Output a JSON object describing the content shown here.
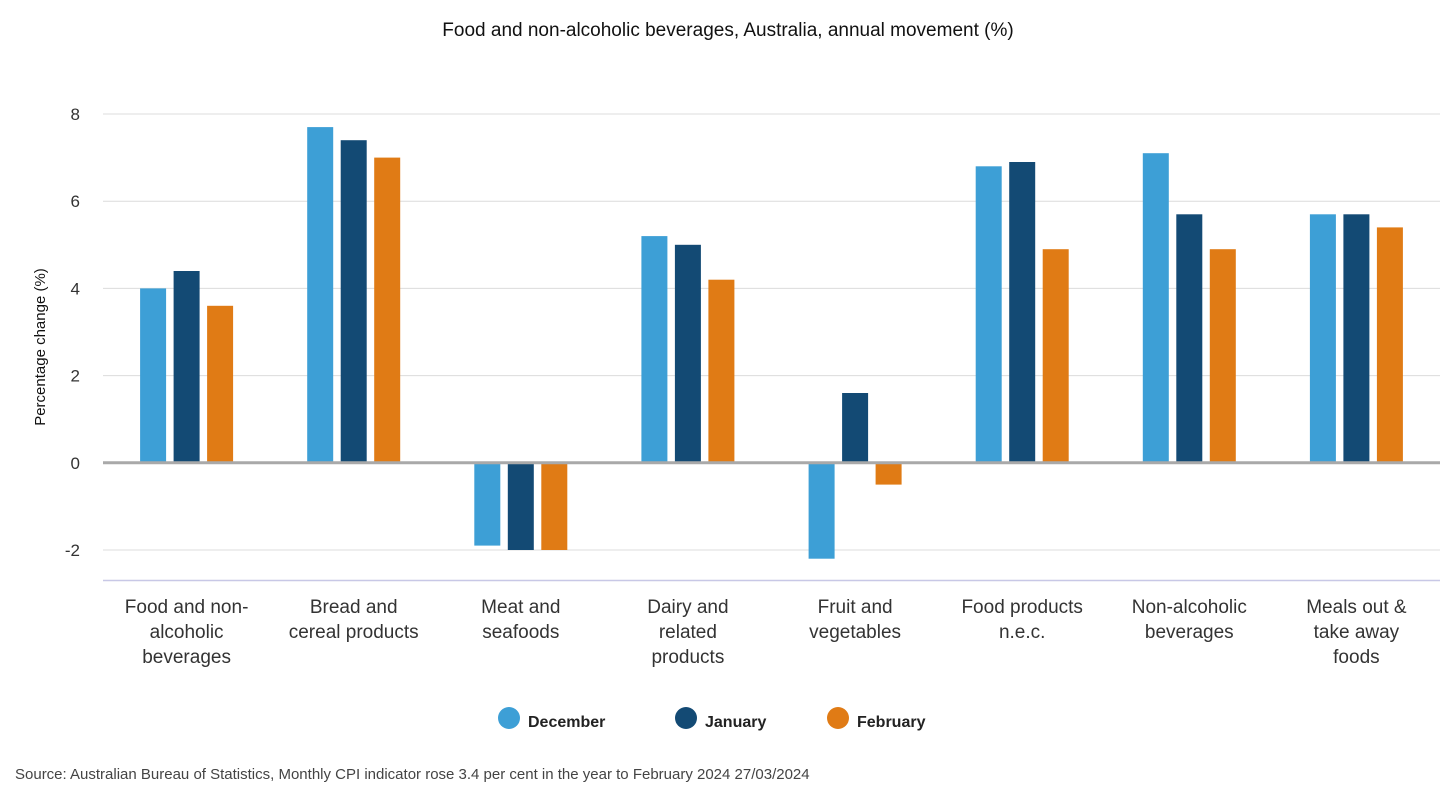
{
  "chart_data": {
    "type": "bar",
    "title": "Food and non-alcoholic beverages, Australia, annual movement (%)",
    "xlabel": "",
    "ylabel": "Percentage change (%)",
    "ylim": [
      -2.7,
      8
    ],
    "yticks": [
      -2,
      0,
      2,
      4,
      6,
      8
    ],
    "categories": [
      [
        "Food and non-",
        "alcoholic",
        "beverages"
      ],
      [
        "Bread and",
        "cereal products"
      ],
      [
        "Meat and",
        "seafoods"
      ],
      [
        "Dairy and",
        "related",
        "products"
      ],
      [
        "Fruit and",
        "vegetables"
      ],
      [
        "Food products",
        "n.e.c."
      ],
      [
        "Non-alcoholic",
        "beverages"
      ],
      [
        "Meals out &",
        "take away",
        "foods"
      ]
    ],
    "series": [
      {
        "name": "December",
        "color": "#3d9fd6",
        "values": [
          4.0,
          7.7,
          -1.9,
          5.2,
          -2.2,
          6.8,
          7.1,
          5.7
        ]
      },
      {
        "name": "January",
        "color": "#134a74",
        "values": [
          4.4,
          7.4,
          -2.0,
          5.0,
          1.6,
          6.9,
          5.7,
          5.7
        ]
      },
      {
        "name": "February",
        "color": "#e07b15",
        "values": [
          3.6,
          7.0,
          -2.0,
          4.2,
          -0.5,
          4.9,
          4.9,
          5.4
        ]
      }
    ],
    "legend_position": "bottom-center",
    "grid": true
  },
  "source": "Source: Australian Bureau of Statistics, Monthly CPI indicator rose 3.4 per cent in the year to February 2024 27/03/2024",
  "colors": {
    "grid": "#dcdcdc",
    "zero_line": "#a9a9a9",
    "axis_line": "#c8c8e6"
  }
}
